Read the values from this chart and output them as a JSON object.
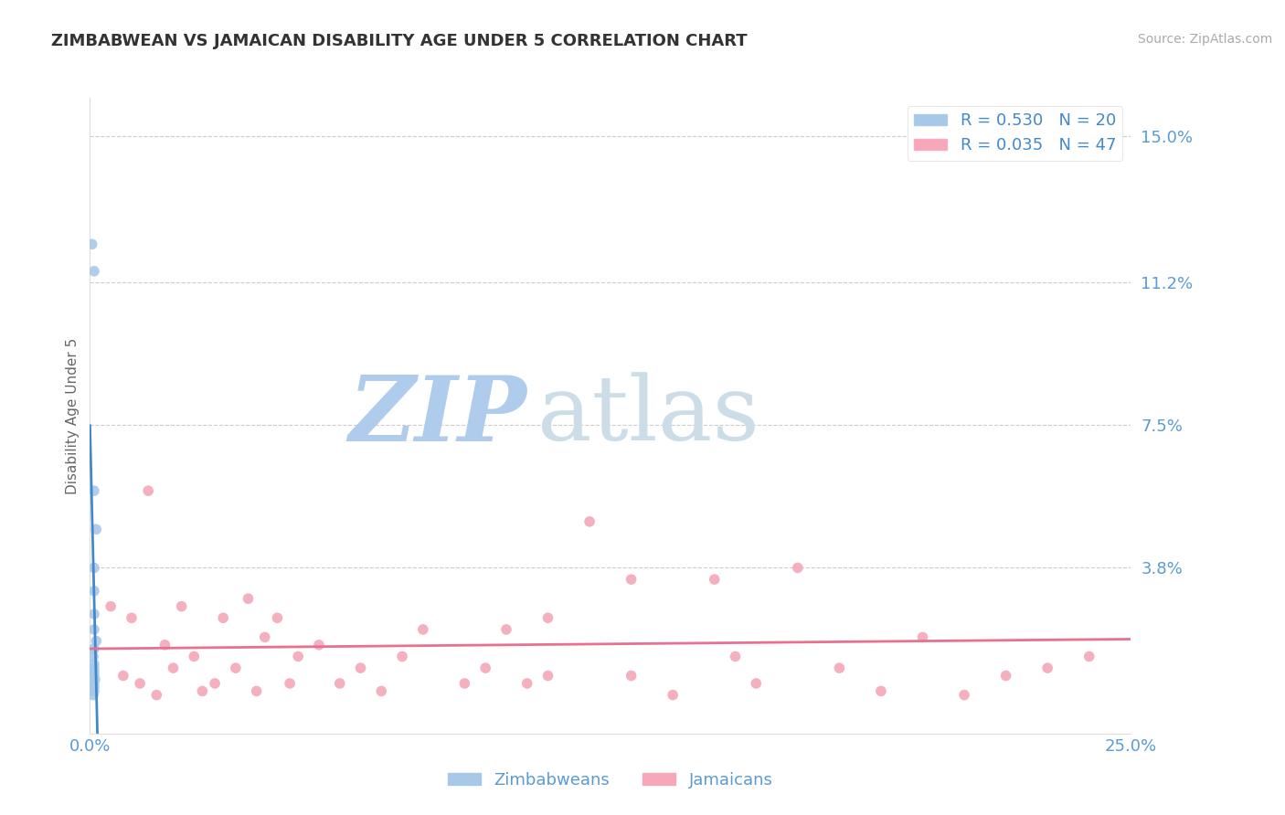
{
  "title": "ZIMBABWEAN VS JAMAICAN DISABILITY AGE UNDER 5 CORRELATION CHART",
  "source": "Source: ZipAtlas.com",
  "ylabel": "Disability Age Under 5",
  "xlim": [
    0.0,
    0.25
  ],
  "ylim": [
    -0.005,
    0.16
  ],
  "ytick_vals": [
    0.0,
    0.038,
    0.075,
    0.112,
    0.15
  ],
  "ytick_labels": [
    "",
    "3.8%",
    "7.5%",
    "11.2%",
    "15.0%"
  ],
  "xtick_vals": [
    0.0,
    0.25
  ],
  "xtick_labels": [
    "0.0%",
    "25.0%"
  ],
  "blue_R": 0.53,
  "blue_N": 20,
  "pink_R": 0.035,
  "pink_N": 47,
  "blue_color": "#a8c8e8",
  "pink_color": "#f4a8b8",
  "blue_line_color": "#4488cc",
  "pink_line_color": "#e87090",
  "watermark_ZIP_color": "#b8d4ec",
  "watermark_atlas_color": "#c8dff0",
  "background_color": "#ffffff",
  "grid_color": "#cccccc",
  "title_color": "#333333",
  "axis_label_color": "#5b9bd5",
  "legend_label_color": "#4488cc",
  "zimbabweans_x": [
    0.0005,
    0.001,
    0.001,
    0.0015,
    0.001,
    0.001,
    0.001,
    0.001,
    0.0015,
    0.001,
    0.0008,
    0.001,
    0.001,
    0.001,
    0.001,
    0.0012,
    0.001,
    0.001,
    0.001,
    0.0008
  ],
  "zimbabweans_y": [
    0.122,
    0.115,
    0.058,
    0.048,
    0.038,
    0.032,
    0.026,
    0.022,
    0.019,
    0.017,
    0.015,
    0.013,
    0.012,
    0.011,
    0.01,
    0.009,
    0.008,
    0.007,
    0.006,
    0.005
  ],
  "jamaicans_x": [
    0.005,
    0.008,
    0.01,
    0.012,
    0.014,
    0.016,
    0.018,
    0.02,
    0.022,
    0.025,
    0.027,
    0.03,
    0.032,
    0.035,
    0.038,
    0.04,
    0.042,
    0.045,
    0.048,
    0.05,
    0.055,
    0.06,
    0.065,
    0.07,
    0.075,
    0.08,
    0.09,
    0.095,
    0.1,
    0.105,
    0.11,
    0.12,
    0.13,
    0.14,
    0.15,
    0.155,
    0.16,
    0.17,
    0.18,
    0.19,
    0.2,
    0.21,
    0.22,
    0.23,
    0.24,
    0.11,
    0.13
  ],
  "jamaicans_y": [
    0.028,
    0.01,
    0.025,
    0.008,
    0.058,
    0.005,
    0.018,
    0.012,
    0.028,
    0.015,
    0.006,
    0.008,
    0.025,
    0.012,
    0.03,
    0.006,
    0.02,
    0.025,
    0.008,
    0.015,
    0.018,
    0.008,
    0.012,
    0.006,
    0.015,
    0.022,
    0.008,
    0.012,
    0.022,
    0.008,
    0.01,
    0.05,
    0.01,
    0.005,
    0.035,
    0.015,
    0.008,
    0.038,
    0.012,
    0.006,
    0.02,
    0.005,
    0.01,
    0.012,
    0.015,
    0.025,
    0.035
  ]
}
